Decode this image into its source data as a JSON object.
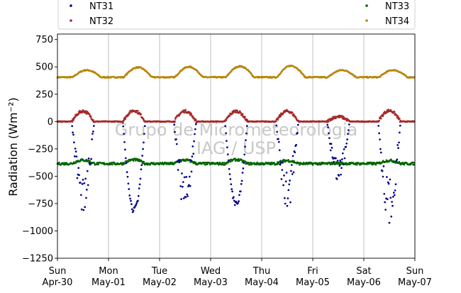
{
  "chart_data": {
    "type": "scatter",
    "title": "",
    "xlabel": "",
    "ylabel": "Radiation (Wm⁻²)",
    "ylim": [
      -1250,
      800
    ],
    "xlim": [
      "2023-04-30",
      "2023-05-07"
    ],
    "yticks": [
      -1250,
      -1000,
      -750,
      -500,
      -250,
      0,
      250,
      500,
      750
    ],
    "ytick_labels": [
      "−1250",
      "−1000",
      "−750",
      "−500",
      "−250",
      "0",
      "250",
      "500",
      "750"
    ],
    "xticks": [
      {
        "top": "Sun",
        "bottom": "Apr-30"
      },
      {
        "top": "Mon",
        "bottom": "May-01"
      },
      {
        "top": "Tue",
        "bottom": "May-02"
      },
      {
        "top": "Wed",
        "bottom": "May-03"
      },
      {
        "top": "Thu",
        "bottom": "May-04"
      },
      {
        "top": "Fri",
        "bottom": "May-05"
      },
      {
        "top": "Sat",
        "bottom": "May-06"
      },
      {
        "top": "Sun",
        "bottom": "May-07"
      }
    ],
    "grid": "vertical",
    "legend": {
      "placement": "top",
      "entries": [
        {
          "name": "NT31",
          "color": "#00008b"
        },
        {
          "name": "NT32",
          "color": "#a52a2a"
        },
        {
          "name": "NT33",
          "color": "#006400"
        },
        {
          "name": "NT34",
          "color": "#b8860b"
        }
      ]
    },
    "watermark": [
      "Grupo de Micrometeorologia",
      "IAG / USP"
    ],
    "series": [
      {
        "name": "NT31",
        "color": "#00008b",
        "daily_min": [
          -870,
          -845,
          -830,
          -790,
          -820,
          -570,
          -940
        ],
        "note_values": "daytime minima per day, near 0 at night"
      },
      {
        "name": "NT32",
        "color": "#a52a2a",
        "daily_max": [
          95,
          100,
          95,
          95,
          95,
          45,
          100
        ]
      },
      {
        "name": "NT33",
        "color": "#006400",
        "baseline": -385,
        "daily_max": [
          -345,
          -340,
          -345,
          -340,
          -350,
          -380,
          -350
        ]
      },
      {
        "name": "NT34",
        "color": "#b8860b",
        "baseline": 405,
        "daily_max": [
          470,
          495,
          500,
          505,
          510,
          470,
          470
        ]
      }
    ]
  }
}
